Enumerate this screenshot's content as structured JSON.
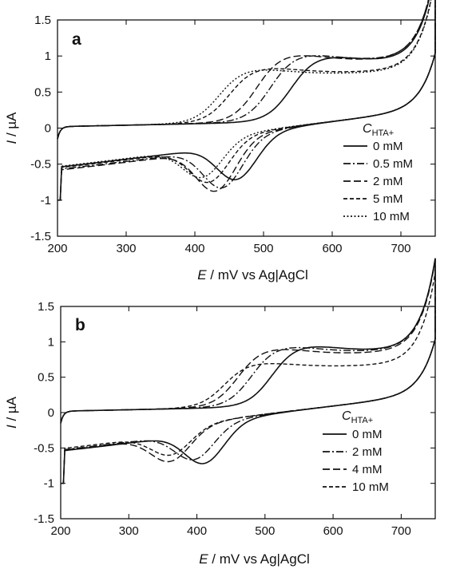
{
  "chart_data": [
    {
      "type": "line",
      "panel_label": "a",
      "xlabel_var": "E",
      "xlabel_rest": " / mV vs Ag|AgCl",
      "ylabel_var": "I",
      "ylabel_rest": " / µA",
      "xlim": [
        200,
        750
      ],
      "ylim": [
        -1.5,
        1.5
      ],
      "xticks": [
        "200",
        "300",
        "400",
        "500",
        "600",
        "700"
      ],
      "yticks": [
        "1.5",
        "1",
        "0.5",
        "0",
        "-0.5",
        "-1",
        "-1.5"
      ],
      "legend_title_var": "C",
      "legend_title_sub": "HTA+",
      "series": [
        {
          "name": "0 mM",
          "style": "solid",
          "Epa": 560,
          "ipa": 1.02,
          "Epc": 460,
          "ipc": -0.63
        },
        {
          "name": "0.5 mM",
          "style": "dashdot",
          "Epa": 530,
          "ipa": 1.05,
          "Epc": 440,
          "ipc": -0.73
        },
        {
          "name": "2 mM",
          "style": "longdash",
          "Epa": 510,
          "ipa": 1.05,
          "Epc": 430,
          "ipc": -0.77
        },
        {
          "name": "5 mM",
          "style": "dash",
          "Epa": 470,
          "ipa": 0.86,
          "Epc": 420,
          "ipc": -0.66
        },
        {
          "name": "10 mM",
          "style": "dot",
          "Epa": 455,
          "ipa": 0.84,
          "Epc": 410,
          "ipc": -0.6
        }
      ]
    },
    {
      "type": "line",
      "panel_label": "b",
      "xlabel_var": "E",
      "xlabel_rest": " / mV vs Ag|AgCl",
      "ylabel_var": "I",
      "ylabel_rest": " / µA",
      "xlim": [
        200,
        750
      ],
      "ylim": [
        -1.5,
        1.5
      ],
      "xticks": [
        "200",
        "300",
        "400",
        "500",
        "600",
        "700"
      ],
      "yticks": [
        "1.5",
        "1",
        "0.5",
        "0",
        "-0.5",
        "-1",
        "-1.5"
      ],
      "legend_title_var": "C",
      "legend_title_sub": "HTA+",
      "series": [
        {
          "name": "0 mM",
          "style": "solid",
          "Epa": 530,
          "ipa": 0.97,
          "Epc": 410,
          "ipc": -0.63
        },
        {
          "name": "2 mM",
          "style": "dashdot",
          "Epa": 500,
          "ipa": 0.96,
          "Epc": 395,
          "ipc": -0.58
        },
        {
          "name": "4 mM",
          "style": "longdash",
          "Epa": 480,
          "ipa": 0.93,
          "Epc": 360,
          "ipc": -0.6
        },
        {
          "name": "10 mM",
          "style": "dash",
          "Epa": 460,
          "ipa": 0.72,
          "Epc": 360,
          "ipc": -0.52
        }
      ]
    }
  ]
}
